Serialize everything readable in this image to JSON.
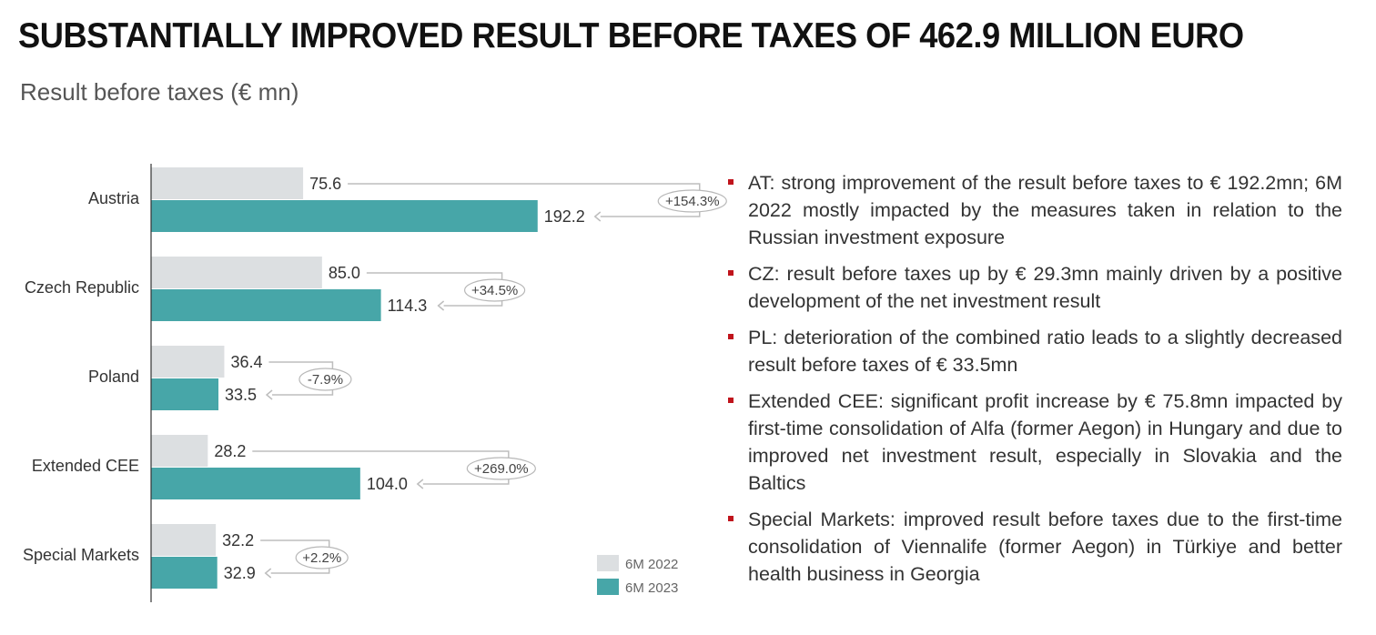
{
  "title": "SUBSTANTIALLY IMPROVED RESULT BEFORE TAXES OF 462.9 MILLION EURO",
  "subtitle": "Result before taxes (€ mn)",
  "colors": {
    "bar_2022": "#dcdfe1",
    "bar_2023": "#47a6a8",
    "bullet": "#c0141c",
    "connector": "#bdbdbd"
  },
  "chart_data": {
    "type": "bar",
    "orientation": "horizontal",
    "categories": [
      "Austria",
      "Czech Republic",
      "Poland",
      "Extended CEE",
      "Special Markets"
    ],
    "series": [
      {
        "name": "6M 2022",
        "values": [
          75.6,
          85.0,
          36.4,
          28.2,
          32.2
        ]
      },
      {
        "name": "6M 2023",
        "values": [
          192.2,
          114.3,
          33.5,
          104.0,
          32.9
        ]
      }
    ],
    "value_labels": {
      "6M 2022": [
        "75.6",
        "85.0",
        "36.4",
        "28.2",
        "32.2"
      ],
      "6M 2023": [
        "192.2",
        "114.3",
        "33.5",
        "104.0",
        "32.9"
      ]
    },
    "change_labels": [
      "+154.3%",
      "+34.5%",
      "-7.9%",
      "+269.0%",
      "+2.2%"
    ],
    "legend": {
      "position": "bottom-right",
      "entries": [
        "6M 2022",
        "6M 2023"
      ]
    },
    "grid": false,
    "xlim": [
      0,
      200
    ]
  },
  "bullets": [
    "AT: strong improvement of the result before taxes to € 192.2mn; 6M 2022 mostly impacted  by the measures taken in relation to the Russian investment exposure",
    "CZ: result before taxes up by € 29.3mn mainly driven by a positive development of the net investment result",
    "PL: deterioration of the combined ratio leads to a slightly decreased result before taxes of € 33.5mn",
    "Extended CEE: significant profit increase by € 75.8mn impacted by first-time consolidation of Alfa (former Aegon) in Hungary and due to improved net investment result, especially in Slovakia and the Baltics",
    "Special Markets: improved result before taxes due to the first-time consolidation of Viennalife (former Aegon) in Türkiye and better health business in Georgia"
  ]
}
